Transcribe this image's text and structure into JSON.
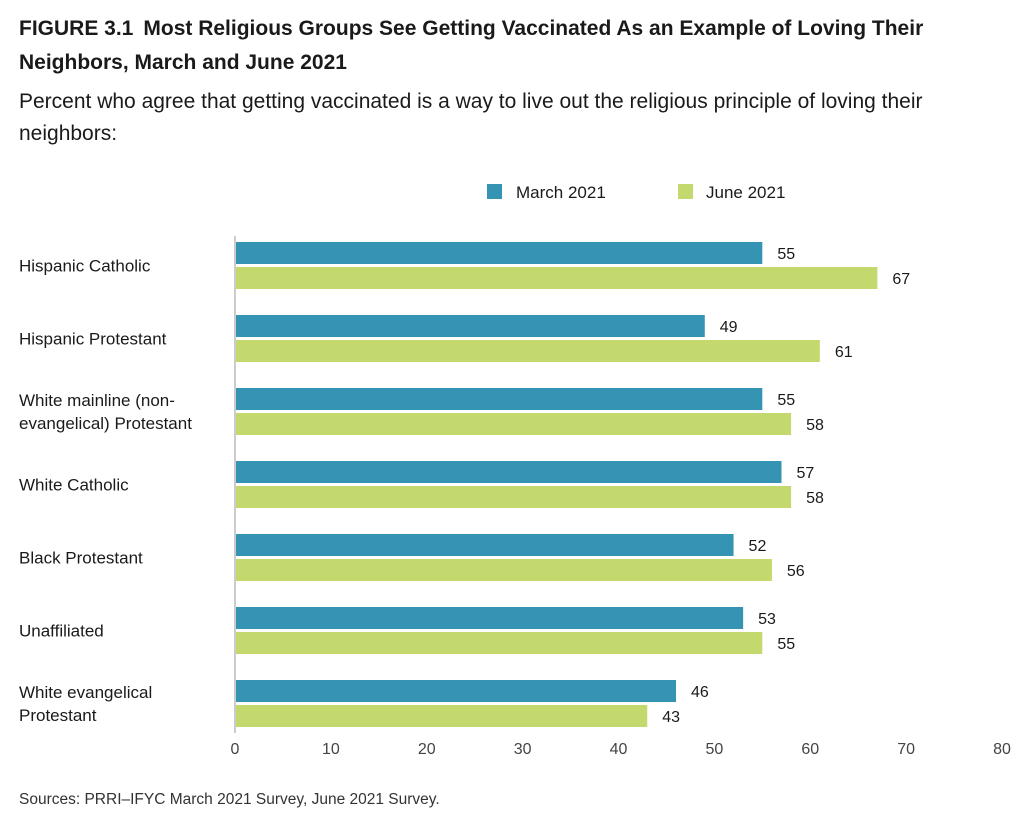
{
  "figure_label": "FIGURE 3.1",
  "title": "Most Religious Groups See Getting Vaccinated As an Example of Loving Their Neighbors, March and June 2021",
  "subtitle": "Percent who agree that getting vaccinated is a way to live out the religious principle of loving their neighbors:",
  "source": "Sources: PRRI–IFYC March 2021 Survey, June 2021 Survey.",
  "colors": {
    "march": "#3594b3",
    "june": "#c3d96e",
    "axis": "#cccccc",
    "text": "#1a1a1a"
  },
  "chart_data": {
    "type": "bar",
    "orientation": "horizontal",
    "categories": [
      [
        "Hispanic Catholic"
      ],
      [
        "Hispanic Protestant"
      ],
      [
        "White mainline (non-",
        "evangelical) Protestant"
      ],
      [
        "White Catholic"
      ],
      [
        "Black Protestant"
      ],
      [
        "Unaffiliated"
      ],
      [
        "White evangelical",
        "Protestant"
      ]
    ],
    "series": [
      {
        "name": "March 2021",
        "values": [
          55,
          49,
          55,
          57,
          52,
          53,
          46
        ]
      },
      {
        "name": "June 2021",
        "values": [
          67,
          61,
          58,
          58,
          56,
          55,
          43
        ]
      }
    ],
    "xlim": [
      0,
      80
    ],
    "xticks": [
      0,
      10,
      20,
      30,
      40,
      50,
      60,
      70,
      80
    ],
    "legend_placement": "top",
    "grid": false,
    "data_labels": true
  }
}
